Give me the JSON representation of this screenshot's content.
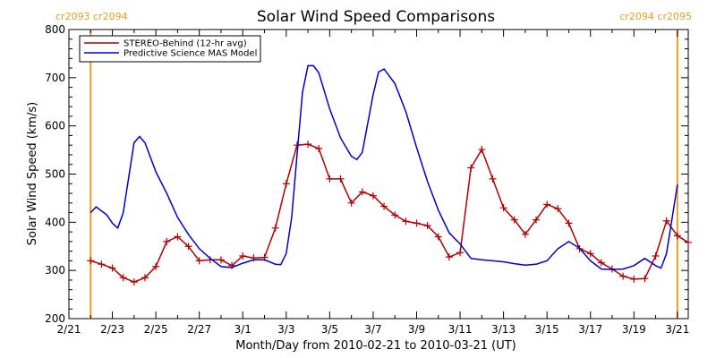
{
  "chart_data": {
    "type": "line",
    "title": "Solar Wind Speed Comparisons",
    "xlabel": "Month/Day from 2010-02-21 to 2010-03-21 (UT)",
    "ylabel": "Solar Wind Speed (km/s)",
    "x_range": [
      "2010-02-21",
      "2010-03-21"
    ],
    "ylim": [
      200,
      800
    ],
    "yticks": [
      200,
      300,
      400,
      500,
      600,
      700,
      800
    ],
    "xticks": [
      {
        "date": "2010-02-21",
        "label": "2/21"
      },
      {
        "date": "2010-02-23",
        "label": "2/23"
      },
      {
        "date": "2010-02-25",
        "label": "2/25"
      },
      {
        "date": "2010-02-27",
        "label": "2/27"
      },
      {
        "date": "2010-03-01",
        "label": "3/1"
      },
      {
        "date": "2010-03-03",
        "label": "3/3"
      },
      {
        "date": "2010-03-05",
        "label": "3/5"
      },
      {
        "date": "2010-03-07",
        "label": "3/7"
      },
      {
        "date": "2010-03-09",
        "label": "3/9"
      },
      {
        "date": "2010-03-11",
        "label": "3/11"
      },
      {
        "date": "2010-03-13",
        "label": "3/13"
      },
      {
        "date": "2010-03-15",
        "label": "3/15"
      },
      {
        "date": "2010-03-17",
        "label": "3/17"
      },
      {
        "date": "2010-03-19",
        "label": "3/19"
      },
      {
        "date": "2010-03-21",
        "label": "3/21"
      }
    ],
    "legend_position": "top-left",
    "grid": false,
    "rotation_markers": [
      {
        "date": "2010-02-22T00:00",
        "label": "cr2093 cr2094",
        "anchor": "start"
      },
      {
        "date": "2010-03-21T00:00",
        "label": "cr2094 cr2095",
        "anchor": "end"
      }
    ],
    "series": [
      {
        "name": "STEREO-Behind (12-hr avg)",
        "color": "#B00000",
        "marker": "plus",
        "points": [
          [
            "2010-02-22T00:00",
            320
          ],
          [
            "2010-02-22T12:00",
            313
          ],
          [
            "2010-02-23T00:00",
            305
          ],
          [
            "2010-02-23T12:00",
            285
          ],
          [
            "2010-02-24T00:00",
            276
          ],
          [
            "2010-02-24T12:00",
            285
          ],
          [
            "2010-02-25T00:00",
            308
          ],
          [
            "2010-02-25T12:00",
            360
          ],
          [
            "2010-02-26T00:00",
            370
          ],
          [
            "2010-02-26T12:00",
            350
          ],
          [
            "2010-02-27T00:00",
            320
          ],
          [
            "2010-02-27T12:00",
            322
          ],
          [
            "2010-02-28T00:00",
            322
          ],
          [
            "2010-02-28T12:00",
            310
          ],
          [
            "2010-03-01T00:00",
            330
          ],
          [
            "2010-03-01T12:00",
            326
          ],
          [
            "2010-03-02T00:00",
            327
          ],
          [
            "2010-03-02T12:00",
            388
          ],
          [
            "2010-03-03T00:00",
            480
          ],
          [
            "2010-03-03T12:00",
            560
          ],
          [
            "2010-03-04T00:00",
            562
          ],
          [
            "2010-03-04T12:00",
            553
          ],
          [
            "2010-03-05T00:00",
            490
          ],
          [
            "2010-03-05T12:00",
            490
          ],
          [
            "2010-03-06T00:00",
            440
          ],
          [
            "2010-03-06T12:00",
            463
          ],
          [
            "2010-03-07T00:00",
            455
          ],
          [
            "2010-03-07T12:00",
            433
          ],
          [
            "2010-03-08T00:00",
            415
          ],
          [
            "2010-03-08T12:00",
            402
          ],
          [
            "2010-03-09T00:00",
            398
          ],
          [
            "2010-03-09T12:00",
            393
          ],
          [
            "2010-03-10T00:00",
            370
          ],
          [
            "2010-03-10T12:00",
            328
          ],
          [
            "2010-03-11T00:00",
            337
          ],
          [
            "2010-03-11T12:00",
            513
          ],
          [
            "2010-03-12T00:00",
            551
          ],
          [
            "2010-03-12T12:00",
            490
          ],
          [
            "2010-03-13T00:00",
            430
          ],
          [
            "2010-03-13T12:00",
            405
          ],
          [
            "2010-03-14T00:00",
            375
          ],
          [
            "2010-03-14T12:00",
            405
          ],
          [
            "2010-03-15T00:00",
            437
          ],
          [
            "2010-03-15T12:00",
            428
          ],
          [
            "2010-03-16T00:00",
            398
          ],
          [
            "2010-03-16T12:00",
            345
          ],
          [
            "2010-03-17T00:00",
            335
          ],
          [
            "2010-03-17T12:00",
            316
          ],
          [
            "2010-03-18T00:00",
            303
          ],
          [
            "2010-03-18T12:00",
            288
          ],
          [
            "2010-03-19T00:00",
            282
          ],
          [
            "2010-03-19T12:00",
            283
          ],
          [
            "2010-03-20T00:00",
            330
          ],
          [
            "2010-03-20T12:00",
            403
          ],
          [
            "2010-03-21T00:00",
            372
          ],
          [
            "2010-03-21T12:00",
            358
          ]
        ]
      },
      {
        "name": "Predictive Science MAS Model",
        "color": "#0000CC",
        "marker": "none",
        "points": [
          [
            "2010-02-22T00:00",
            420
          ],
          [
            "2010-02-22T06:00",
            432
          ],
          [
            "2010-02-22T18:00",
            415
          ],
          [
            "2010-02-23T00:00",
            398
          ],
          [
            "2010-02-23T06:00",
            388
          ],
          [
            "2010-02-23T12:00",
            420
          ],
          [
            "2010-02-24T00:00",
            565
          ],
          [
            "2010-02-24T06:00",
            578
          ],
          [
            "2010-02-24T12:00",
            565
          ],
          [
            "2010-02-25T00:00",
            505
          ],
          [
            "2010-02-25T12:00",
            460
          ],
          [
            "2010-02-26T00:00",
            410
          ],
          [
            "2010-02-26T12:00",
            375
          ],
          [
            "2010-02-27T00:00",
            345
          ],
          [
            "2010-02-27T12:00",
            325
          ],
          [
            "2010-02-28T00:00",
            308
          ],
          [
            "2010-02-28T12:00",
            306
          ],
          [
            "2010-03-01T00:00",
            315
          ],
          [
            "2010-03-01T12:00",
            322
          ],
          [
            "2010-03-02T00:00",
            322
          ],
          [
            "2010-03-02T12:00",
            313
          ],
          [
            "2010-03-02T18:00",
            312
          ],
          [
            "2010-03-03T00:00",
            335
          ],
          [
            "2010-03-03T06:00",
            410
          ],
          [
            "2010-03-03T12:00",
            540
          ],
          [
            "2010-03-03T18:00",
            670
          ],
          [
            "2010-03-04T00:00",
            725
          ],
          [
            "2010-03-04T06:00",
            725
          ],
          [
            "2010-03-04T12:00",
            710
          ],
          [
            "2010-03-05T00:00",
            635
          ],
          [
            "2010-03-05T12:00",
            575
          ],
          [
            "2010-03-06T00:00",
            537
          ],
          [
            "2010-03-06T06:00",
            530
          ],
          [
            "2010-03-06T12:00",
            545
          ],
          [
            "2010-03-07T00:00",
            665
          ],
          [
            "2010-03-07T06:00",
            712
          ],
          [
            "2010-03-07T12:00",
            718
          ],
          [
            "2010-03-08T00:00",
            688
          ],
          [
            "2010-03-08T12:00",
            630
          ],
          [
            "2010-03-09T00:00",
            555
          ],
          [
            "2010-03-09T12:00",
            485
          ],
          [
            "2010-03-10T00:00",
            425
          ],
          [
            "2010-03-10T12:00",
            378
          ],
          [
            "2010-03-11T00:00",
            355
          ],
          [
            "2010-03-11T12:00",
            325
          ],
          [
            "2010-03-12T00:00",
            322
          ],
          [
            "2010-03-12T12:00",
            320
          ],
          [
            "2010-03-13T00:00",
            318
          ],
          [
            "2010-03-13T12:00",
            314
          ],
          [
            "2010-03-14T00:00",
            311
          ],
          [
            "2010-03-14T12:00",
            313
          ],
          [
            "2010-03-15T00:00",
            320
          ],
          [
            "2010-03-15T12:00",
            345
          ],
          [
            "2010-03-16T00:00",
            360
          ],
          [
            "2010-03-16T12:00",
            346
          ],
          [
            "2010-03-17T00:00",
            320
          ],
          [
            "2010-03-17T12:00",
            303
          ],
          [
            "2010-03-18T00:00",
            302
          ],
          [
            "2010-03-18T12:00",
            303
          ],
          [
            "2010-03-19T00:00",
            310
          ],
          [
            "2010-03-19T12:00",
            325
          ],
          [
            "2010-03-20T00:00",
            310
          ],
          [
            "2010-03-20T06:00",
            305
          ],
          [
            "2010-03-20T12:00",
            335
          ],
          [
            "2010-03-21T00:00",
            478
          ]
        ]
      }
    ]
  }
}
